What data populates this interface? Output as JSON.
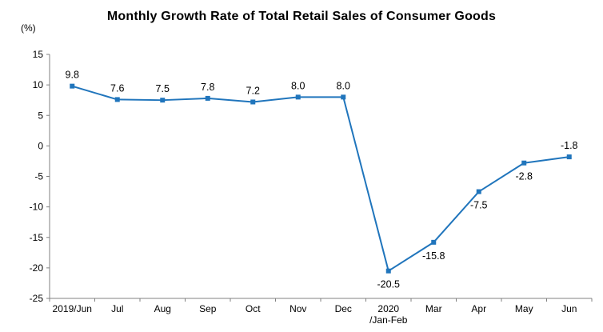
{
  "chart_data": {
    "type": "line",
    "title": "Monthly Growth Rate of Total Retail Sales of Consumer Goods",
    "ylabel": "(%)",
    "xlabel": "",
    "categories": [
      "2019/Jun",
      "Jul",
      "Aug",
      "Sep",
      "Oct",
      "Nov",
      "Dec",
      "2020\n/Jan-Feb",
      "Mar",
      "Apr",
      "May",
      "Jun"
    ],
    "values": [
      9.8,
      7.6,
      7.5,
      7.8,
      7.2,
      8.0,
      8.0,
      -20.5,
      -15.8,
      -7.5,
      -2.8,
      -1.8
    ],
    "value_labels": [
      "9.8",
      "7.6",
      "7.5",
      "7.8",
      "7.2",
      "8.0",
      "8.0",
      "-20.5",
      "-15.8",
      "-7.5",
      "-2.8",
      "-1.8"
    ],
    "label_positions": [
      "above",
      "above",
      "above",
      "above",
      "above",
      "above",
      "above",
      "below",
      "below",
      "below",
      "below",
      "above"
    ],
    "ylim": [
      -25,
      15
    ],
    "ytick_step": 5,
    "grid": false,
    "legend_position": "none",
    "line_color": "#2075BC",
    "marker_color": "#2075BC",
    "axis_color": "#808080",
    "text_color": "#000000"
  }
}
